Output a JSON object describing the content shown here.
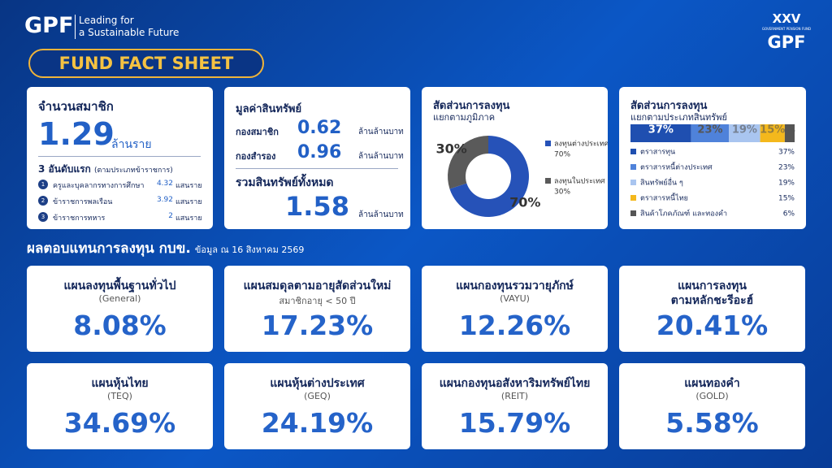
{
  "header": {
    "brand": "GPF",
    "tagline_1": "Leading for",
    "tagline_2": "a Sustainable Future",
    "logo_mark": "XXV",
    "logo_caption": "GOVERNMENT PENSION FUND",
    "logo_brand": "GPF",
    "banner": "FUND FACT SHEET"
  },
  "members": {
    "title": "จำนวนสมาชิก",
    "value": "1.29",
    "unit": "ล้านราย",
    "top_title": "3 อันดับแรก",
    "top_note": "(ตามประเภทข้าราชการ)",
    "rows": [
      {
        "rank": "1",
        "name": "ครูและบุคลากรทางการศึกษา",
        "value": "4.32",
        "unit": "แสนราย"
      },
      {
        "rank": "2",
        "name": "ข้าราชการพลเรือน",
        "value": "3.92",
        "unit": "แสนราย"
      },
      {
        "rank": "3",
        "name": "ข้าราชการทหาร",
        "value": "2",
        "unit": "แสนราย"
      }
    ]
  },
  "assets": {
    "title": "มูลค่าสินทรัพย์",
    "rows": [
      {
        "name": "กองสมาชิก",
        "value": "0.62",
        "unit": "ล้านล้านบาท"
      },
      {
        "name": "กองสำรอง",
        "value": "0.96",
        "unit": "ล้านล้านบาท"
      }
    ],
    "total_title": "รวมสินทรัพย์ทั้งหมด",
    "total_value": "1.58",
    "total_unit": "ล้านล้านบาท"
  },
  "region_chart": {
    "type": "pie",
    "title": "สัดส่วนการลงทุน",
    "subtitle": "แยกตามภูมิภาค",
    "categories": [
      "ลงทุนต่างประเทศ",
      "ลงทุนในประเทศ"
    ],
    "values": [
      70,
      30
    ],
    "value_labels": [
      "70%",
      "30%"
    ],
    "colors": [
      "#2652b8",
      "#5a5a5a"
    ]
  },
  "asset_chart": {
    "type": "stacked-bar",
    "title": "สัดส่วนการลงทุน",
    "subtitle": "แยกตามประเภทสินทรัพย์",
    "categories": [
      "ตราสารทุน",
      "ตราสารหนี้ต่างประเทศ",
      "สินทรัพย์อื่น ๆ",
      "ตราสารหนี้ไทย",
      "สินค้าโภคภัณฑ์ และทองคำ"
    ],
    "values": [
      37,
      23,
      19,
      15,
      6
    ],
    "value_labels": [
      "37%",
      "23%",
      "19%",
      "15%",
      "6%"
    ],
    "colors": [
      "#1f4fb0",
      "#4f82da",
      "#a9c5f0",
      "#f4b81c",
      "#555555"
    ]
  },
  "returns": {
    "title": "ผลตอบแทนการลงทุน กบข.",
    "date": "ข้อมูล ณ 16 สิงหาคม 2569",
    "plans": [
      {
        "title": "แผนลงทุนพื้นฐานทั่วไป",
        "subtitle": "(General)",
        "value": "8.08%"
      },
      {
        "title": "แผนสมดุลตามอายุสัดส่วนใหม่",
        "subtitle": "สมาชิกอายุ < 50 ปี",
        "value": "17.23%"
      },
      {
        "title": "แผนกองทุนรวมวายุภักษ์",
        "subtitle": "(VAYU)",
        "value": "12.26%"
      },
      {
        "title": "แผนการลงทุน",
        "title_2": "ตามหลักชะรีอะฮ์",
        "value": "20.41%"
      },
      {
        "title": "แผนหุ้นไทย",
        "subtitle": "(TEQ)",
        "value": "34.69%"
      },
      {
        "title": "แผนหุ้นต่างประเทศ",
        "subtitle": "(GEQ)",
        "value": "24.19%"
      },
      {
        "title": "แผนกองทุนอสังหาริมทรัพย์ไทย",
        "subtitle": "(REIT)",
        "value": "15.79%"
      },
      {
        "title": "แผนทองคำ",
        "subtitle": "(GOLD)",
        "value": "5.58%"
      }
    ]
  }
}
